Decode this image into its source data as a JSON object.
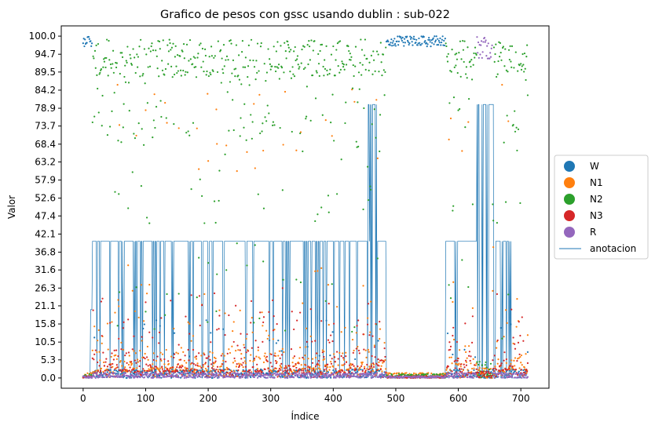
{
  "chart_data": {
    "type": "scatter",
    "title": "Grafico de pesos con gssc usando dublin :  sub-022",
    "xlabel": "Índice",
    "ylabel": "Valor",
    "xlim": [
      -35,
      745
    ],
    "ylim": [
      -3,
      103
    ],
    "xticks": [
      0,
      100,
      200,
      300,
      400,
      500,
      600,
      700
    ],
    "xtick_labels": [
      "0",
      "100",
      "200",
      "300",
      "400",
      "500",
      "600",
      "700"
    ],
    "yticks": [
      0.0,
      5.3,
      10.5,
      15.8,
      21.1,
      26.3,
      31.6,
      36.8,
      42.1,
      47.4,
      52.6,
      57.9,
      63.2,
      68.4,
      73.7,
      78.9,
      84.2,
      89.5,
      94.7,
      100.0
    ],
    "ytick_labels": [
      "0.0",
      "5.3",
      "10.5",
      "15.8",
      "21.1",
      "26.3",
      "31.6",
      "36.8",
      "42.1",
      "47.4",
      "52.6",
      "57.9",
      "63.2",
      "68.4",
      "73.7",
      "78.9",
      "84.2",
      "89.5",
      "94.7",
      "100.0"
    ],
    "grid": false,
    "legend_position": "outside-right",
    "n_points": 712,
    "series": [
      {
        "name": "W",
        "kind": "scatter",
        "color": "#1f77b4"
      },
      {
        "name": "N1",
        "kind": "scatter",
        "color": "#ff7f0e"
      },
      {
        "name": "N2",
        "kind": "scatter",
        "color": "#2ca02c"
      },
      {
        "name": "N3",
        "kind": "scatter",
        "color": "#d62728"
      },
      {
        "name": "R",
        "kind": "scatter",
        "color": "#9467bd"
      },
      {
        "name": "anotacion",
        "kind": "line",
        "color": "#1f77b4"
      }
    ],
    "annotation_levels": [
      0,
      20,
      40,
      80
    ],
    "annotation_segments": [
      {
        "x": [
          0,
          12
        ],
        "value": 0
      },
      {
        "x": [
          12,
          15
        ],
        "value": 20
      },
      {
        "x": [
          15,
          485
        ],
        "value": 40,
        "note": "frequent brief drops to 0"
      },
      {
        "x": [
          455,
          470
        ],
        "value": 80,
        "note": "spikes"
      },
      {
        "x": [
          485,
          500
        ],
        "value": 0
      },
      {
        "x": [
          500,
          580
        ],
        "value": 0
      },
      {
        "x": [
          580,
          630
        ],
        "value": 40
      },
      {
        "x": [
          630,
          660
        ],
        "value": 80,
        "note": "oscillating between 0 and 80"
      },
      {
        "x": [
          660,
          685
        ],
        "value": 40,
        "note": "with drops"
      },
      {
        "x": [
          685,
          712
        ],
        "value": 0
      }
    ],
    "stage_regions": [
      {
        "x": [
          0,
          15
        ],
        "dominant": "W"
      },
      {
        "x": [
          15,
          485
        ],
        "dominant": "N2"
      },
      {
        "x": [
          485,
          580
        ],
        "dominant": "W"
      },
      {
        "x": [
          580,
          625
        ],
        "dominant": "N2"
      },
      {
        "x": [
          630,
          655
        ],
        "dominant": "R"
      },
      {
        "x": [
          655,
          712
        ],
        "dominant": "N2"
      }
    ]
  }
}
